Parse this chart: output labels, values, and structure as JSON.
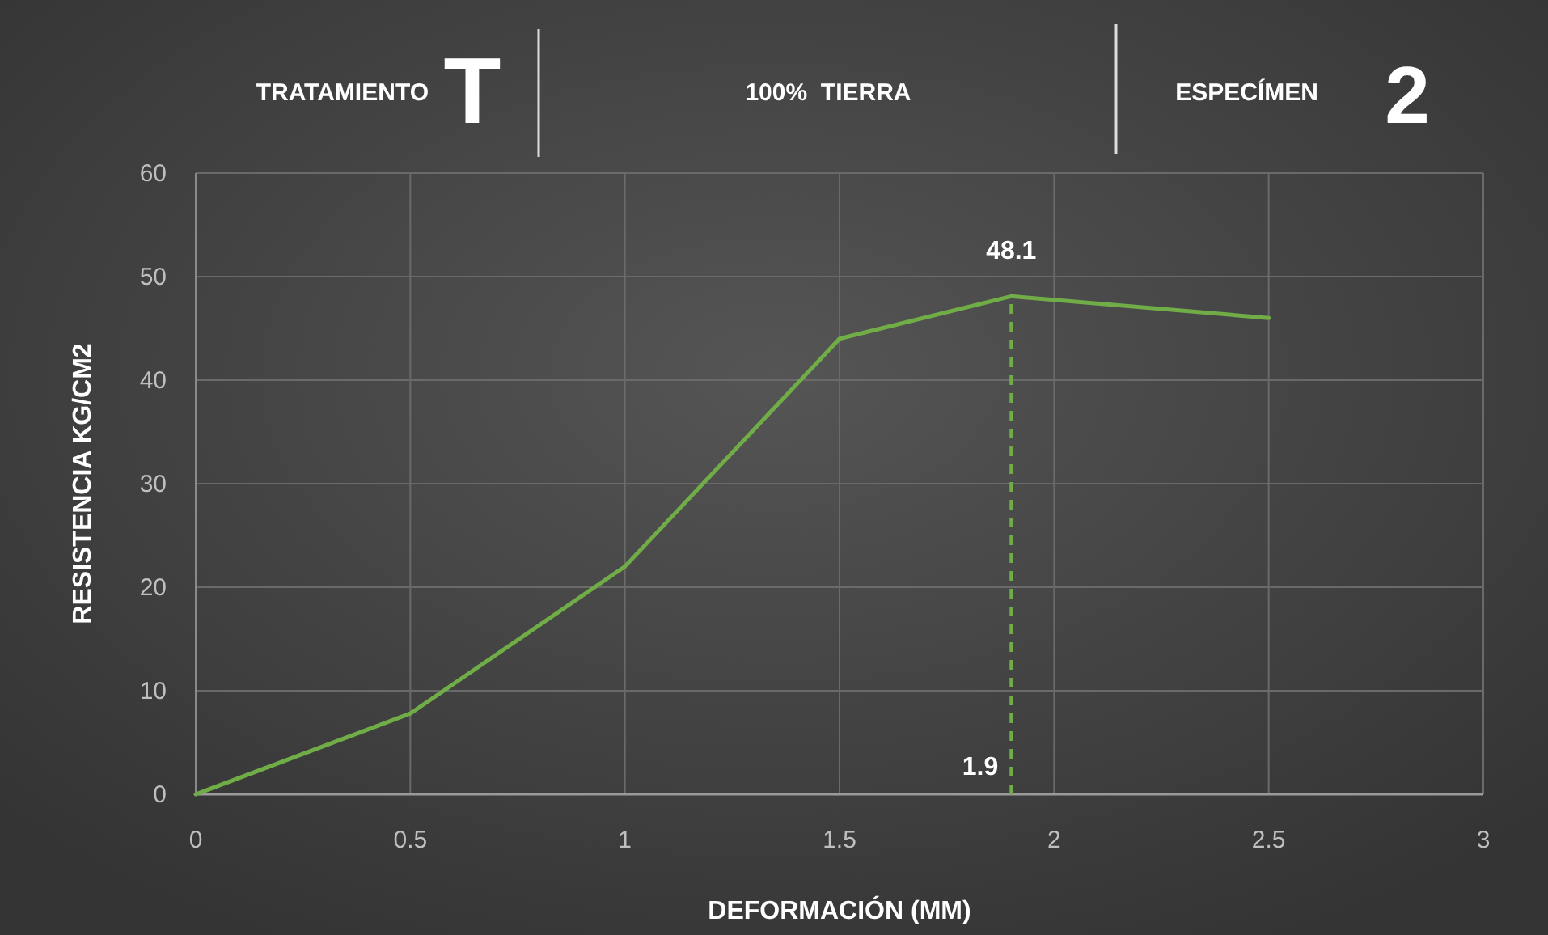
{
  "chart_data": {
    "type": "line",
    "xlabel": "DEFORMACIÓN (MM)",
    "ylabel": "RESISTENCIA KG/CM2",
    "x": [
      0,
      0.5,
      1,
      1.5,
      1.9,
      2.5
    ],
    "series": [
      {
        "color": "#70ad47",
        "values": [
          0,
          7.8,
          22,
          44,
          48.1,
          46
        ]
      }
    ],
    "xlim": [
      0,
      3
    ],
    "xticks": [
      0,
      0.5,
      1,
      1.5,
      2,
      2.5,
      3
    ],
    "ylim": [
      0,
      60
    ],
    "yticks": [
      0,
      10,
      20,
      30,
      40,
      50,
      60
    ],
    "grid": true,
    "marker": "none",
    "line_style": "solid",
    "ref_lines": [
      {
        "axis": "x",
        "value": 1.9,
        "label": "1.9",
        "color": "#70ad47",
        "line_style": "dashed"
      }
    ],
    "annotations": [
      "TRATAMIENTO",
      "T",
      "100%  TIERRA",
      "ESPECÍMEN",
      "2",
      {
        "text": "48.1",
        "x": 1.9,
        "y": 48.1
      }
    ]
  }
}
